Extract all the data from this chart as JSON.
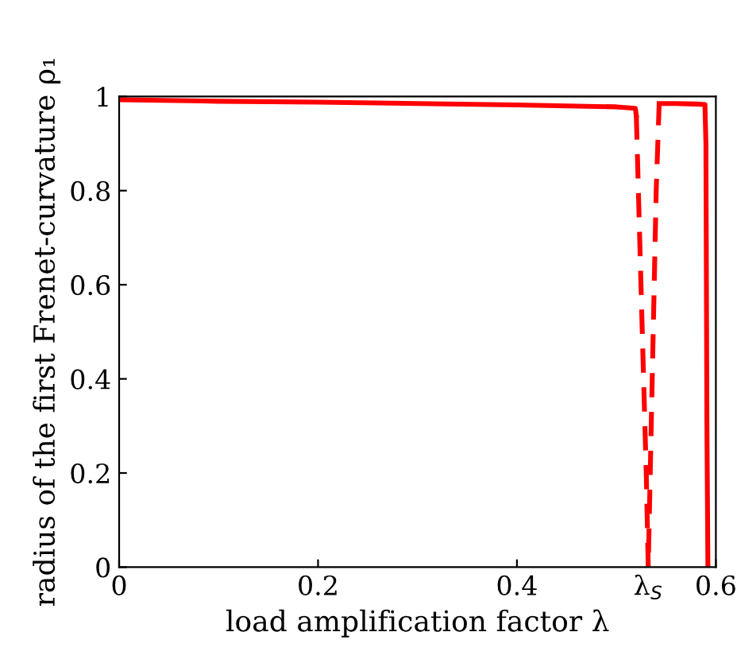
{
  "chart_data": {
    "type": "line",
    "xlabel": "load amplification factor λ",
    "ylabel": "radius of the first Frenet-curvature ρ₁",
    "xlim": [
      0,
      0.6
    ],
    "ylim": [
      0,
      1
    ],
    "xticks": [
      0,
      0.2,
      0.4,
      {
        "value": 0.532,
        "label": "λ$_{S}$"
      },
      0.6
    ],
    "yticks": [
      0,
      0.2,
      0.4,
      0.6,
      0.8,
      1
    ],
    "grid": false,
    "legend": false,
    "marker": "none",
    "series": [
      {
        "color": "#ff0000",
        "line_style": "solid",
        "x": [
          0.0,
          0.1,
          0.2,
          0.3,
          0.4,
          0.5,
          0.519,
          0.52
        ],
        "values": [
          0.993,
          0.99,
          0.988,
          0.985,
          0.982,
          0.978,
          0.975,
          0.96
        ]
      },
      {
        "color": "#ff0000",
        "line_style": "dashed",
        "x": [
          0.52,
          0.526,
          0.53,
          0.532,
          0.536,
          0.54,
          0.543
        ],
        "values": [
          0.96,
          0.5,
          0.2,
          0.0,
          0.4,
          0.8,
          0.985
        ]
      },
      {
        "color": "#ff0000",
        "line_style": "solid",
        "x": [
          0.543,
          0.56,
          0.58,
          0.589,
          0.59,
          0.591,
          0.592
        ],
        "values": [
          0.985,
          0.985,
          0.984,
          0.983,
          0.9,
          0.3,
          0.0
        ]
      }
    ]
  }
}
